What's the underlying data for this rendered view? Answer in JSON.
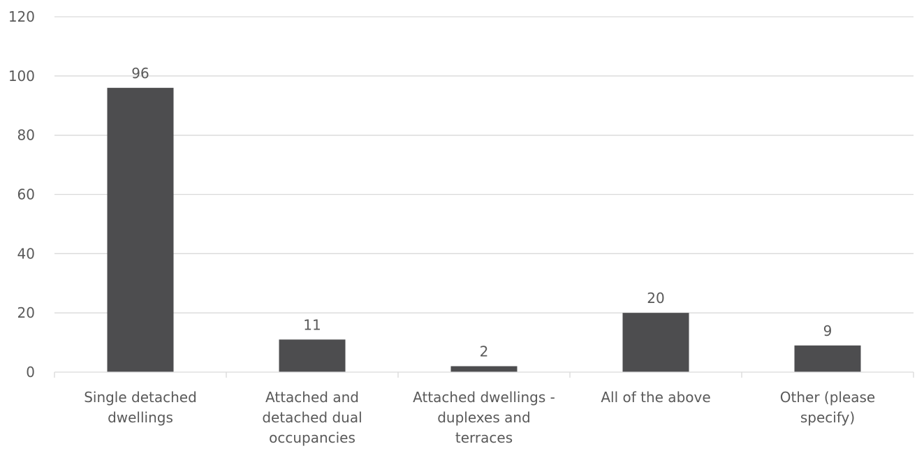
{
  "chart_data": {
    "type": "bar",
    "title": "",
    "xlabel": "",
    "ylabel": "",
    "categories": [
      [
        "Single detached",
        "dwellings"
      ],
      [
        "Attached and",
        "detached dual",
        "occupancies"
      ],
      [
        "Attached dwellings -",
        "duplexes and",
        "terraces"
      ],
      [
        "All of the above"
      ],
      [
        "Other (please",
        "specify)"
      ]
    ],
    "values": [
      96,
      11,
      2,
      20,
      9
    ],
    "data_labels": [
      "96",
      "11",
      "2",
      "20",
      "9"
    ],
    "ylim": [
      0,
      120
    ],
    "yticks": [
      "0",
      "20",
      "40",
      "60",
      "80",
      "100",
      "120"
    ],
    "grid": true,
    "bar_color": "#4d4d4f",
    "grid_color": "#d9d9d9"
  }
}
